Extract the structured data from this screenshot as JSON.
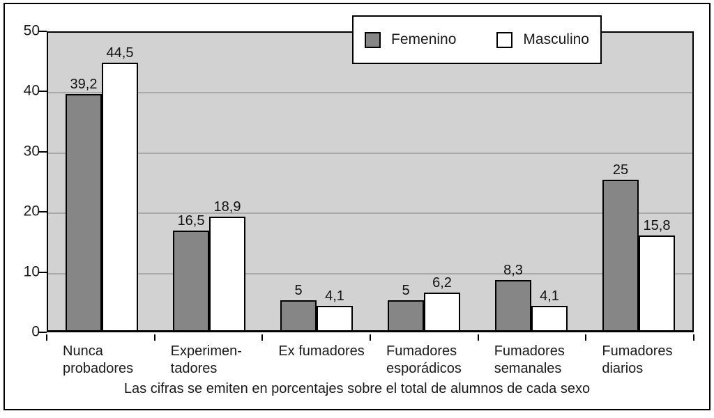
{
  "chart_data": {
    "type": "bar",
    "title": "",
    "caption": "Las cifras se emiten en porcentajes sobre el total de alumnos de cada sexo",
    "categories": [
      "Nunca\nprobadores",
      "Experimen-\ntadores",
      "Ex fumadores",
      "Fumadores\nesporádicos",
      "Fumadores\nsemanales",
      "Fumadores\ndiarios"
    ],
    "series": [
      {
        "name": "Femenino",
        "values": [
          39.2,
          16.5,
          5,
          5,
          8.3,
          25
        ],
        "value_labels": [
          "39,2",
          "16,5",
          "5",
          "5",
          "8,3",
          "25"
        ],
        "color": "#868686"
      },
      {
        "name": "Masculino",
        "values": [
          44.5,
          18.9,
          4.1,
          6.2,
          4.1,
          15.8
        ],
        "value_labels": [
          "44,5",
          "18,9",
          "4,1",
          "6,2",
          "4,1",
          "15,8"
        ],
        "color": "#ffffff"
      }
    ],
    "xlabel": "",
    "ylabel": "",
    "ylim": [
      0,
      50
    ],
    "y_ticks": [
      0,
      10,
      20,
      30,
      40,
      50
    ],
    "grid": true,
    "legend_position": "top",
    "colors": {
      "plot_background": "#d2d2d2",
      "gridline": "#a9a9a9",
      "border": "#000000"
    }
  }
}
